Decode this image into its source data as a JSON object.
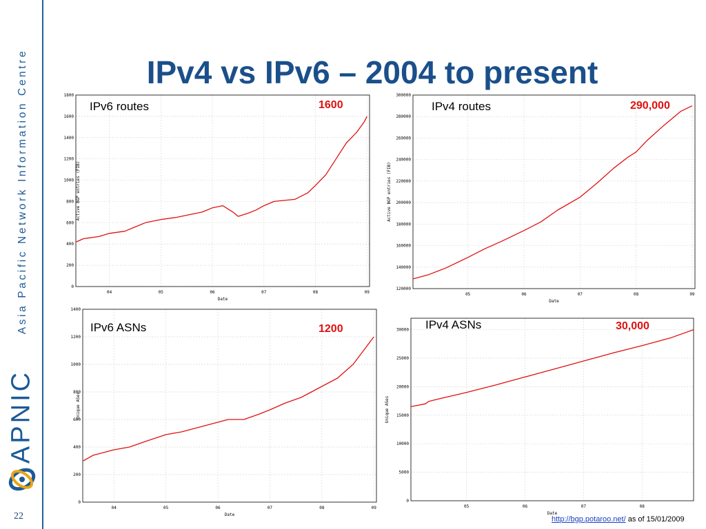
{
  "slide": {
    "title": "IPv4 vs IPv6 – 2004 to present",
    "number": "22",
    "side_text": "Asia Pacific Network Information Centre",
    "brand": "APNIC",
    "footer": {
      "link_text": "http://bgp.potaroo.net/",
      "suffix": " as of 15/01/2009"
    }
  },
  "colors": {
    "series": "#e01010",
    "brand": "#1b5a96",
    "callout": "#e01010"
  },
  "icons": {
    "logo": "apnic-swirl-logo-icon"
  },
  "chart_data": [
    {
      "type": "line",
      "label": "IPv6 routes",
      "callout": "1600",
      "xlabel": "Date",
      "ylabel": "Active BGP entries (FIB)",
      "xlim": [
        2003.35,
        2009.05
      ],
      "ylim": [
        0,
        1800
      ],
      "yticks": [
        0,
        200,
        400,
        600,
        800,
        1000,
        1200,
        1400,
        1600,
        1800
      ],
      "xticks": [
        {
          "v": 2004,
          "l": "04"
        },
        {
          "v": 2005,
          "l": "05"
        },
        {
          "v": 2006,
          "l": "06"
        },
        {
          "v": 2007,
          "l": "07"
        },
        {
          "v": 2008,
          "l": "08"
        },
        {
          "v": 2009,
          "l": "09"
        }
      ],
      "series": [
        {
          "x": [
            2003.36,
            2003.5,
            2003.8,
            2004.0,
            2004.3,
            2004.5,
            2004.7,
            2005.0,
            2005.3,
            2005.5,
            2005.8,
            2006.0,
            2006.2,
            2006.4,
            2006.5,
            2006.7,
            2006.85,
            2007.0,
            2007.2,
            2007.4,
            2007.6,
            2007.85,
            2008.0,
            2008.2,
            2008.4,
            2008.6,
            2008.8,
            2008.95,
            2009.0
          ],
          "y": [
            420,
            450,
            470,
            500,
            520,
            560,
            600,
            630,
            650,
            670,
            700,
            740,
            760,
            700,
            660,
            690,
            720,
            760,
            800,
            810,
            820,
            880,
            950,
            1050,
            1200,
            1350,
            1450,
            1550,
            1600
          ]
        }
      ]
    },
    {
      "type": "line",
      "label": "IPv4 routes",
      "callout": "290,000",
      "xlabel": "Date",
      "ylabel": "Active BGP entries (FIB)",
      "xlim": [
        2004.02,
        2009.05
      ],
      "ylim": [
        120000,
        300000
      ],
      "yticks": [
        120000,
        140000,
        160000,
        180000,
        200000,
        220000,
        240000,
        260000,
        280000,
        300000
      ],
      "xticks": [
        {
          "v": 2005,
          "l": "05"
        },
        {
          "v": 2006,
          "l": "06"
        },
        {
          "v": 2007,
          "l": "07"
        },
        {
          "v": 2008,
          "l": "08"
        },
        {
          "v": 2009,
          "l": "09"
        }
      ],
      "series": [
        {
          "x": [
            2004.02,
            2004.3,
            2004.6,
            2005.0,
            2005.3,
            2005.6,
            2006.0,
            2006.3,
            2006.6,
            2007.0,
            2007.3,
            2007.6,
            2007.85,
            2008.0,
            2008.2,
            2008.5,
            2008.8,
            2009.0
          ],
          "y": [
            129000,
            133000,
            139000,
            149000,
            157000,
            164000,
            174000,
            182000,
            193000,
            205000,
            218000,
            232000,
            242000,
            247000,
            258000,
            272000,
            285000,
            290000
          ]
        }
      ]
    },
    {
      "type": "line",
      "label": "IPv6 ASNs",
      "callout": "1200",
      "xlabel": "Date",
      "ylabel": "Unique ASes",
      "xlim": [
        2003.4,
        2009.05
      ],
      "ylim": [
        0,
        1400
      ],
      "yticks": [
        0,
        200,
        400,
        600,
        800,
        1000,
        1200,
        1400
      ],
      "xticks": [
        {
          "v": 2004,
          "l": "04"
        },
        {
          "v": 2005,
          "l": "05"
        },
        {
          "v": 2006,
          "l": "06"
        },
        {
          "v": 2007,
          "l": "07"
        },
        {
          "v": 2008,
          "l": "08"
        },
        {
          "v": 2009,
          "l": "09"
        }
      ],
      "series": [
        {
          "x": [
            2003.41,
            2003.6,
            2004.0,
            2004.3,
            2004.6,
            2005.0,
            2005.3,
            2005.6,
            2006.0,
            2006.2,
            2006.5,
            2006.8,
            2007.0,
            2007.3,
            2007.6,
            2008.0,
            2008.3,
            2008.6,
            2008.8,
            2009.0
          ],
          "y": [
            300,
            340,
            380,
            400,
            440,
            490,
            510,
            540,
            580,
            600,
            600,
            640,
            670,
            720,
            760,
            840,
            900,
            1000,
            1100,
            1200
          ]
        }
      ]
    },
    {
      "type": "line",
      "label": "IPv4 ASNs",
      "callout": "30,000",
      "xlabel": "Date",
      "ylabel": "Unique ASes",
      "xlim": [
        2004.05,
        2008.88
      ],
      "ylim": [
        0,
        32000
      ],
      "yticks": [
        0,
        5000,
        10000,
        15000,
        20000,
        25000,
        30000
      ],
      "xticks": [
        {
          "v": 2005,
          "l": "05"
        },
        {
          "v": 2006,
          "l": "06"
        },
        {
          "v": 2007,
          "l": "07"
        },
        {
          "v": 2008,
          "l": "08"
        }
      ],
      "series": [
        {
          "x": [
            2004.05,
            2004.3,
            2004.35,
            2004.5,
            2005.0,
            2005.5,
            2006.0,
            2006.5,
            2007.0,
            2007.5,
            2008.0,
            2008.5,
            2008.88
          ],
          "y": [
            16500,
            17000,
            17400,
            17800,
            19000,
            20300,
            21700,
            23100,
            24500,
            25900,
            27200,
            28600,
            30000
          ]
        }
      ]
    }
  ]
}
